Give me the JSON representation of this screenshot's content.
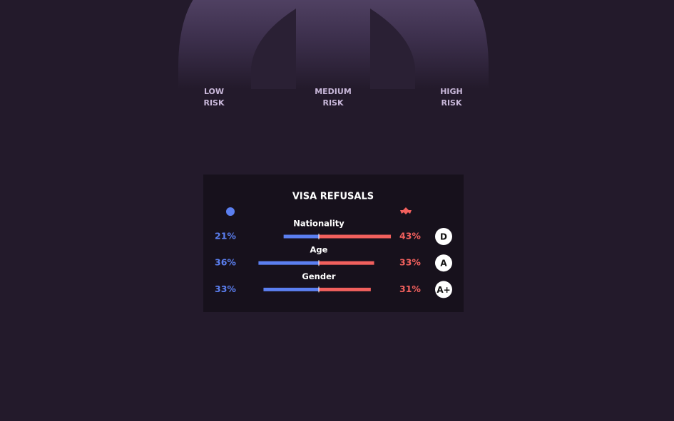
{
  "risk_scale": {
    "labels": [
      "LOW RISK",
      "MEDIUM RISK",
      "HIGH RISK"
    ]
  },
  "chart_data": {
    "type": "diverging-bar",
    "title": "VISA REFUSALS",
    "categories": [
      "Nationality",
      "Age",
      "Gender"
    ],
    "series": [
      {
        "color": "#5b7ff0",
        "values": [
          21,
          36,
          33
        ],
        "value_labels": [
          "21%",
          "36%",
          "33%"
        ]
      },
      {
        "color": "#f2605d",
        "values": [
          43,
          33,
          31
        ],
        "value_labels": [
          "43%",
          "33%",
          "31%"
        ]
      }
    ],
    "grades": [
      "D",
      "A",
      "A+"
    ]
  }
}
